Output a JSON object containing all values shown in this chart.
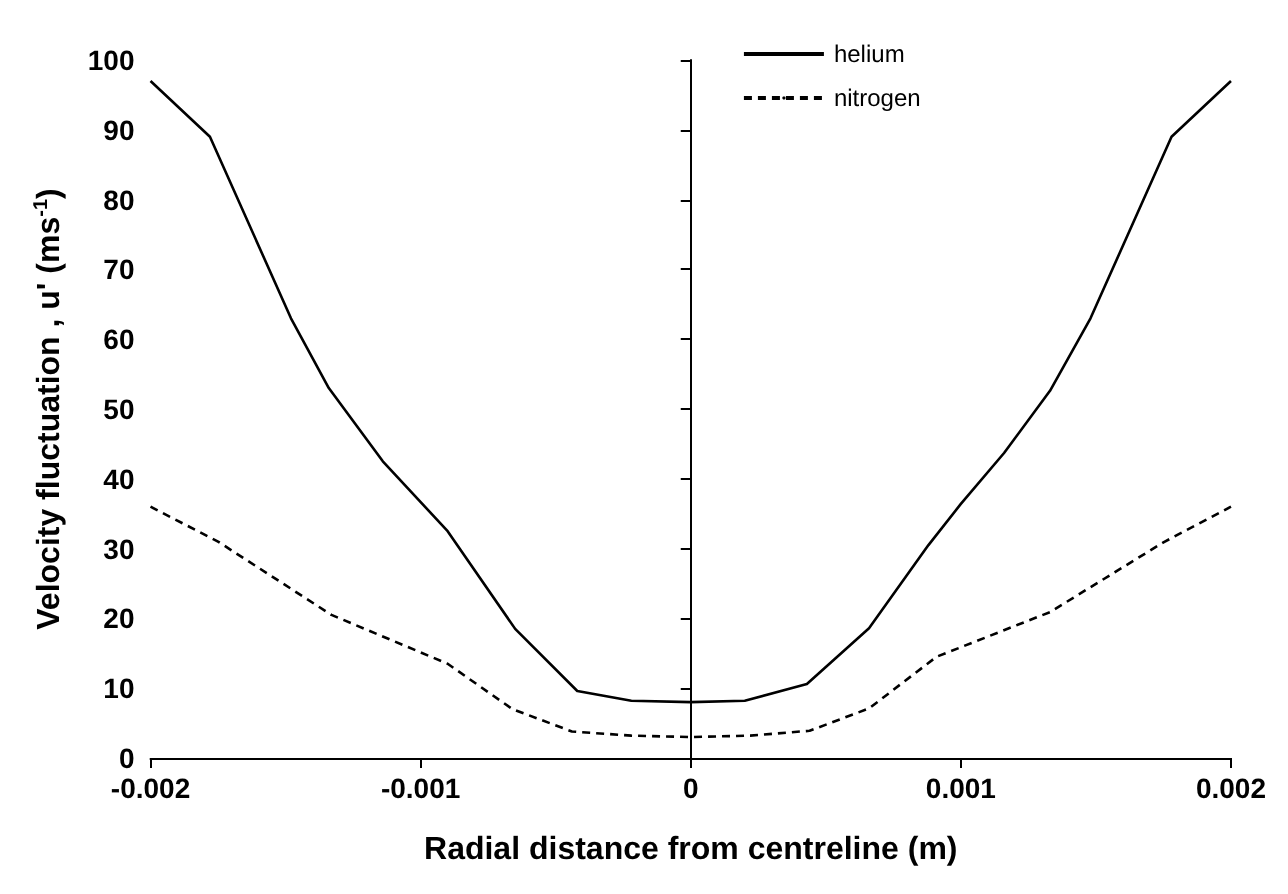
{
  "chart_data": {
    "type": "line",
    "xlabel": "Radial distance from centreline (m)",
    "ylabel": "Velocity fluctuation , u' (ms$^{-1}$)",
    "xlim": [
      -0.002,
      0.002
    ],
    "xticks": [
      -0.002,
      -0.001,
      0,
      0.001,
      0.002
    ],
    "ylim": [
      0,
      100
    ],
    "yticks": [
      0,
      10,
      20,
      30,
      40,
      50,
      60,
      70,
      80,
      90,
      100
    ],
    "legend": "top",
    "marker": "none",
    "series": [
      {
        "name": "helium",
        "color": "#000000",
        "line_style": "solid",
        "x": [
          -0.002,
          -0.00178,
          -0.00148,
          -0.00134,
          -0.00114,
          -0.0009,
          -0.00065,
          -0.00042,
          -0.00022,
          0,
          0.0002,
          0.00043,
          0.00066,
          0.00088,
          0.001,
          0.00116,
          0.00133,
          0.00148,
          0.00178,
          0.002
        ],
        "values": [
          97,
          89,
          63,
          53,
          42.5,
          32.5,
          18.5,
          9.6,
          8.2,
          8,
          8.2,
          10.6,
          18.6,
          30.5,
          36.4,
          43.7,
          52.6,
          63,
          89,
          97
        ]
      },
      {
        "name": "nitrogen",
        "color": "#000000",
        "line_style": "dashed",
        "x": [
          -0.002,
          -0.00175,
          -0.00133,
          -0.0009,
          -0.00066,
          -0.00044,
          -0.00022,
          0,
          0.00022,
          0.00044,
          0.00066,
          0.00091,
          0.00133,
          0.00175,
          0.002
        ],
        "values": [
          36,
          31,
          20.5,
          13.5,
          7,
          3.8,
          3.2,
          3,
          3.2,
          3.9,
          7.1,
          14.5,
          20.9,
          30.9,
          36
        ]
      }
    ]
  }
}
